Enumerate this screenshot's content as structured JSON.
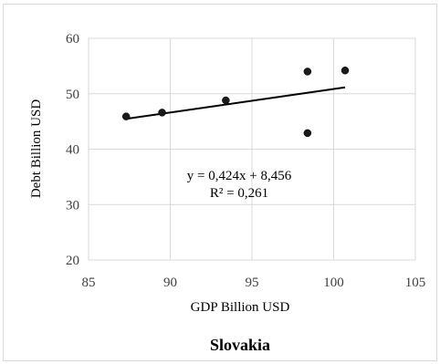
{
  "chart_data": {
    "type": "scatter",
    "title": "Slovakia",
    "xlabel": "GDP Billion USD",
    "ylabel": "Debt Billion USD",
    "xlim": [
      85,
      105
    ],
    "ylim": [
      20,
      60
    ],
    "xticks": [
      "85",
      "90",
      "95",
      "100",
      "105"
    ],
    "yticks": [
      "20",
      "30",
      "40",
      "50",
      "60"
    ],
    "grid": true,
    "points": [
      {
        "x": 87.3,
        "y": 45.9
      },
      {
        "x": 89.5,
        "y": 46.6
      },
      {
        "x": 93.4,
        "y": 48.8
      },
      {
        "x": 98.4,
        "y": 54.0
      },
      {
        "x": 98.4,
        "y": 42.9
      },
      {
        "x": 100.7,
        "y": 54.2
      }
    ],
    "trendline": {
      "type": "linear",
      "slope": 0.424,
      "intercept": 8.456,
      "x_range": [
        87.3,
        100.7
      ],
      "equation_label": "y = 0,424x + 8,456",
      "r2_label": "R² = 0,261"
    },
    "colors": {
      "marker": "#1a1a1a",
      "trendline": "#000000",
      "grid": "#d9d9d9"
    }
  }
}
